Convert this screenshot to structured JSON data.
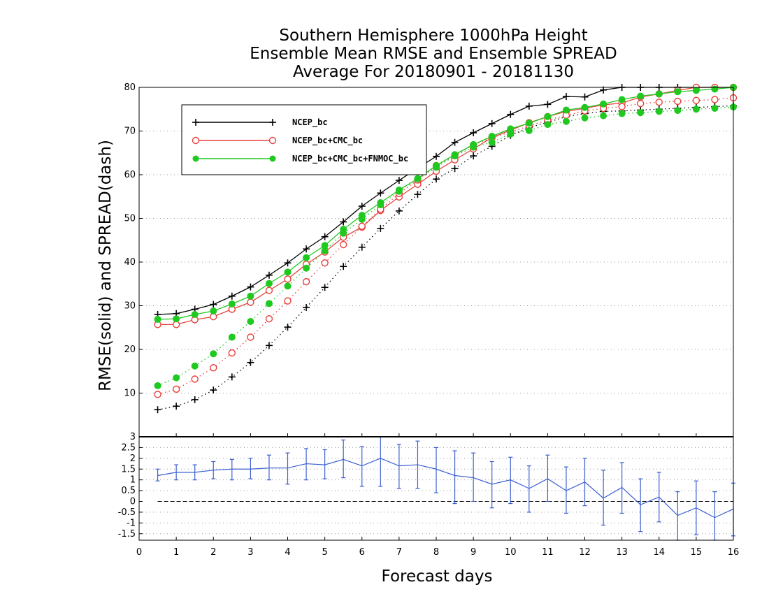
{
  "chart_data": [
    {
      "type": "line",
      "title_lines": [
        "Southern Hemisphere 1000hPa Height",
        "Ensemble Mean RMSE and Ensemble SPREAD",
        "Average For 20180901 - 20181130"
      ],
      "ylabel": "RMSE(solid) and SPREAD(dash)",
      "xlabel": "Forecast days",
      "xlim": [
        0,
        16
      ],
      "ylim": [
        0,
        80
      ],
      "yticks": [
        10,
        20,
        30,
        40,
        50,
        60,
        70,
        80
      ],
      "grid": true,
      "legend_position": "top-left",
      "x": [
        0.5,
        1.0,
        1.5,
        2.0,
        2.5,
        3.0,
        3.5,
        4.0,
        4.5,
        5.0,
        5.5,
        6.0,
        6.5,
        7.0,
        7.5,
        8.0,
        8.5,
        9.0,
        9.5,
        10.0,
        10.5,
        11.0,
        11.5,
        12.0,
        12.5,
        13.0,
        13.5,
        14.0,
        14.5,
        15.0,
        15.5,
        16.0
      ],
      "series": [
        {
          "name": "NCEP_bc",
          "color": "#000000",
          "marker": "plus",
          "rmse": [
            28.0,
            28.2,
            29.2,
            30.3,
            32.2,
            34.3,
            37.0,
            39.8,
            43.0,
            45.8,
            49.2,
            52.8,
            55.8,
            58.7,
            61.5,
            64.2,
            67.4,
            69.6,
            71.7,
            73.8,
            75.7,
            76.1,
            77.9,
            77.8,
            79.4,
            80.0,
            80.0,
            80.0,
            80.0,
            80.0,
            80.0,
            80.0
          ],
          "spread": [
            6.2,
            7.0,
            8.5,
            10.7,
            13.7,
            17.0,
            20.9,
            25.1,
            29.6,
            34.2,
            39.0,
            43.4,
            47.7,
            51.7,
            55.5,
            59.0,
            61.4,
            64.3,
            66.5,
            69.0,
            70.8,
            72.0,
            73.3,
            74.0,
            74.5,
            74.6,
            74.8,
            75.0,
            75.2,
            75.4,
            75.6,
            75.8
          ]
        },
        {
          "name": "NCEP_bc+CMC_bc",
          "color": "#e8413c",
          "marker": "open-circle",
          "rmse": [
            25.7,
            25.7,
            26.8,
            27.5,
            29.2,
            30.8,
            33.5,
            36.1,
            39.5,
            42.3,
            45.7,
            48.0,
            51.8,
            54.9,
            57.8,
            60.8,
            63.4,
            65.9,
            68.5,
            70.2,
            71.9,
            73.3,
            74.5,
            75.2,
            76.0,
            76.4,
            77.8,
            78.5,
            79.3,
            80.0,
            80.0,
            80.0
          ],
          "spread": [
            9.7,
            10.9,
            13.2,
            15.8,
            19.2,
            22.8,
            27.0,
            31.1,
            35.5,
            39.8,
            44.0,
            48.2,
            52.1,
            55.7,
            58.8,
            62.1,
            64.4,
            66.8,
            68.5,
            69.7,
            71.2,
            72.5,
            73.6,
            74.6,
            75.2,
            75.6,
            76.3,
            76.6,
            76.8,
            77.0,
            77.2,
            77.6
          ]
        },
        {
          "name": "NCEP_bc+CMC_bc+FNMOC_bc",
          "color": "#1fc91f",
          "marker": "filled-circle",
          "rmse": [
            26.9,
            27.0,
            28.0,
            28.8,
            30.4,
            32.2,
            35.1,
            37.7,
            41.0,
            43.8,
            47.5,
            50.7,
            53.6,
            56.5,
            59.1,
            62.1,
            64.6,
            66.9,
            68.8,
            70.5,
            71.8,
            73.3,
            74.8,
            75.4,
            76.2,
            77.2,
            78.0,
            78.5,
            79.0,
            79.3,
            79.6,
            80.0
          ],
          "spread": [
            11.7,
            13.5,
            16.2,
            19.0,
            22.8,
            26.4,
            30.5,
            34.5,
            38.6,
            42.6,
            46.6,
            49.8,
            53.1,
            56.2,
            59.1,
            61.7,
            64.3,
            66.3,
            67.4,
            69.3,
            70.1,
            71.5,
            72.2,
            73.0,
            73.5,
            74.0,
            74.2,
            74.5,
            74.7,
            75.0,
            75.2,
            75.5
          ]
        }
      ]
    },
    {
      "type": "line",
      "xlabel": "Forecast days",
      "xticks": [
        0,
        1,
        2,
        3,
        4,
        5,
        6,
        7,
        8,
        9,
        10,
        11,
        12,
        13,
        14,
        15,
        16
      ],
      "ylim": [
        -1.8,
        3
      ],
      "ytick_labels": [
        "3",
        "2.5",
        "2",
        "1.5",
        "1",
        "0.5",
        "0",
        "-0.5",
        "-1",
        "-1.5"
      ],
      "grid": true,
      "zero_line": "dashed",
      "series": [
        {
          "name": "",
          "color": "#3a5fd0",
          "errorbars": true,
          "x": [
            0.5,
            1.0,
            1.5,
            2.0,
            2.5,
            3.0,
            3.5,
            4.0,
            4.5,
            5.0,
            5.5,
            6.0,
            6.5,
            7.0,
            7.5,
            8.0,
            8.5,
            9.0,
            9.5,
            10.0,
            10.5,
            11.0,
            11.5,
            12.0,
            12.5,
            13.0,
            13.5,
            14.0,
            14.5,
            15.0,
            15.5,
            16.0
          ],
          "y": [
            1.2,
            1.35,
            1.35,
            1.45,
            1.5,
            1.5,
            1.55,
            1.55,
            1.75,
            1.7,
            1.95,
            1.65,
            2.0,
            1.65,
            1.7,
            1.5,
            1.2,
            1.1,
            0.8,
            1.0,
            0.6,
            1.05,
            0.5,
            0.9,
            0.15,
            0.65,
            -0.15,
            0.2,
            -0.65,
            -0.3,
            -0.75,
            -0.35
          ],
          "err_low": [
            0.95,
            1.0,
            1.0,
            1.05,
            1.0,
            1.05,
            1.0,
            0.8,
            1.0,
            1.05,
            1.1,
            0.7,
            0.7,
            0.6,
            0.6,
            0.4,
            -0.1,
            0.0,
            -0.3,
            -0.1,
            -0.5,
            0.0,
            -0.55,
            -0.2,
            -1.1,
            -0.55,
            -1.4,
            -0.95,
            -1.8,
            -1.55,
            -1.8,
            -1.6
          ],
          "err_high": [
            1.5,
            1.7,
            1.7,
            1.85,
            1.95,
            2.0,
            2.15,
            2.25,
            2.45,
            2.4,
            2.85,
            2.55,
            3.0,
            2.65,
            2.8,
            2.5,
            2.35,
            2.25,
            1.85,
            2.05,
            1.65,
            2.15,
            1.6,
            2.0,
            1.45,
            1.8,
            1.05,
            1.35,
            0.45,
            0.95,
            0.45,
            0.85
          ]
        }
      ]
    }
  ]
}
